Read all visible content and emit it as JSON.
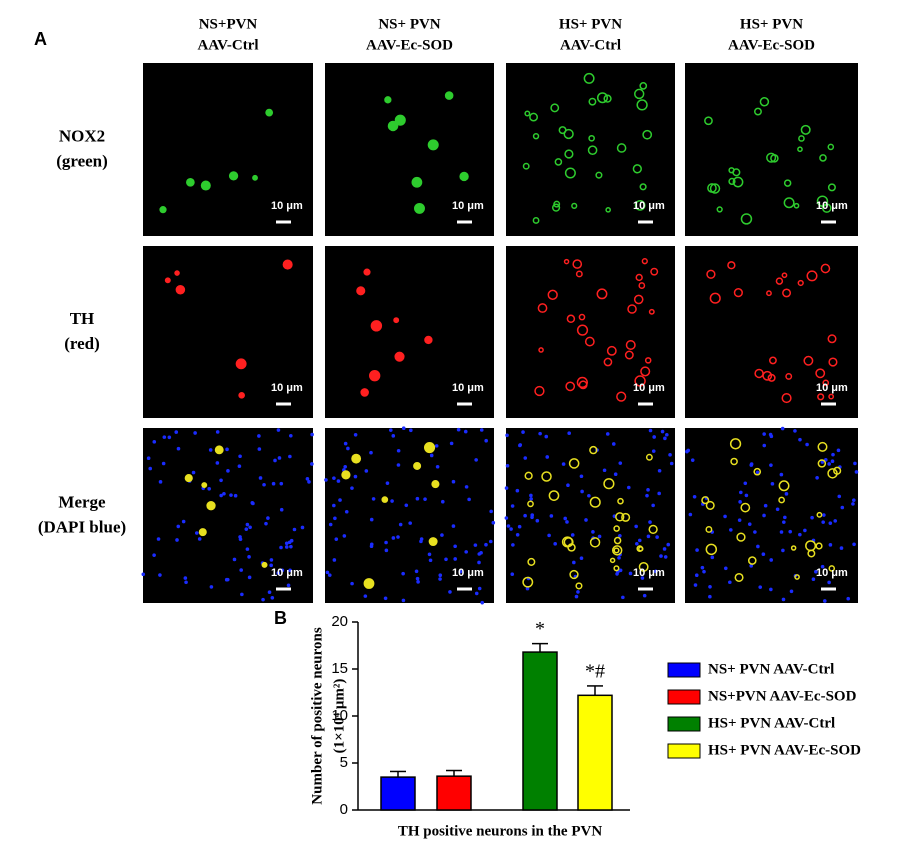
{
  "panel_labels": {
    "a": "A",
    "b": "B"
  },
  "panel_a": {
    "columns": [
      [
        "NS+PVN",
        "AAV-Ctrl"
      ],
      [
        "NS+ PVN",
        "AAV-Ec-SOD"
      ],
      [
        "HS+ PVN",
        "AAV-Ctrl"
      ],
      [
        "HS+ PVN",
        "AAV-Ec-SOD"
      ]
    ],
    "rows": [
      [
        "NOX2",
        "(green)"
      ],
      [
        "TH",
        "(red)"
      ],
      [
        "Merge",
        "(DAPI blue)"
      ]
    ],
    "scale_bar": "10 μm"
  },
  "chart_data": {
    "type": "bar",
    "y_label": [
      "Number of positive neurons",
      "(1×10⁴ μm²)"
    ],
    "x_label": "TH positive neurons in the PVN",
    "ylim": [
      0,
      20
    ],
    "yticks": [
      0,
      5,
      10,
      15,
      20
    ],
    "series": [
      {
        "name": "NS+ PVN AAV-Ctrl",
        "color": "#0000ff",
        "values": [
          3.5
        ],
        "errors": [
          0.6
        ]
      },
      {
        "name": "NS+PVN AAV-Ec-SOD",
        "color": "#ff0000",
        "values": [
          3.6
        ],
        "errors": [
          0.6
        ]
      },
      {
        "name": "HS+ PVN AAV-Ctrl",
        "color": "#008000",
        "values": [
          16.8
        ],
        "errors": [
          0.9
        ],
        "annotation": "*"
      },
      {
        "name": "HS+ PVN AAV-Ec-SOD",
        "color": "#ffff00",
        "values": [
          12.2
        ],
        "errors": [
          1.0
        ],
        "annotation": "*#"
      }
    ]
  }
}
